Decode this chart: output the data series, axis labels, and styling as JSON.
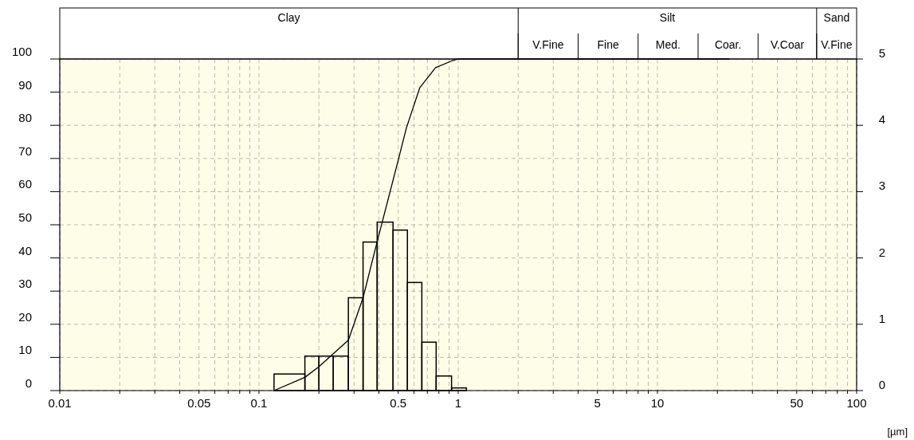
{
  "chart_data": {
    "type": "histogram",
    "xlabel": "[µm]",
    "log": "x",
    "grid": true,
    "xlim": [
      0.01,
      100
    ],
    "xticks": [
      0.01,
      {
        "value": 0.02,
        "label": null
      },
      {
        "value": 0.03,
        "label": null
      },
      {
        "value": 0.04,
        "label": null
      },
      0.05,
      {
        "value": 0.06,
        "label": null
      },
      {
        "value": 0.07,
        "label": null
      },
      {
        "value": 0.08,
        "label": null
      },
      {
        "value": 0.09,
        "label": null
      },
      0.1,
      {
        "value": 0.2,
        "label": null
      },
      {
        "value": 0.3,
        "label": null
      },
      {
        "value": 0.4,
        "label": null
      },
      0.5,
      {
        "value": 0.6,
        "label": null
      },
      {
        "value": 0.7,
        "label": null
      },
      {
        "value": 0.8,
        "label": null
      },
      {
        "value": 0.9,
        "label": null
      },
      1,
      {
        "value": 2,
        "label": null
      },
      {
        "value": 3,
        "label": null
      },
      {
        "value": 4,
        "label": null
      },
      5,
      {
        "value": 6,
        "label": null
      },
      {
        "value": 7,
        "label": null
      },
      {
        "value": 8,
        "label": null
      },
      {
        "value": 9,
        "label": null
      },
      10,
      {
        "value": 20,
        "label": null
      },
      {
        "value": 30,
        "label": null
      },
      {
        "value": 40,
        "label": null
      },
      50,
      {
        "value": 60,
        "label": null
      },
      {
        "value": 70,
        "label": null
      },
      {
        "value": 80,
        "label": null
      },
      {
        "value": 90,
        "label": null
      },
      100
    ],
    "ylim": [
      0,
      100
    ],
    "yticks": [
      0,
      10,
      20,
      30,
      40,
      50,
      60,
      70,
      80,
      90,
      100
    ],
    "y2lim": [
      0,
      5
    ],
    "y2ticks": [
      0,
      1,
      2,
      3,
      4,
      5
    ],
    "annotations": [
      "Clay",
      "Silt",
      "Sand",
      "V.Fine",
      "Fine",
      "Med.",
      "Coar.",
      "V.Coar",
      "V.Fine"
    ],
    "series": [
      {
        "type": "histogram",
        "axis": "y2",
        "color": "#000000",
        "bins": [
          0.119,
          0.17,
          0.2,
          0.236,
          0.281,
          0.333,
          0.392,
          0.471,
          0.556,
          0.657,
          0.775,
          0.926,
          1.1
        ],
        "values": [
          0.25,
          0.52,
          0.52,
          0.52,
          1.4,
          2.24,
          2.54,
          2.42,
          1.63,
          0.73,
          0.22,
          0.04
        ]
      },
      {
        "type": "line",
        "color": "#000000",
        "x": [
          0.119,
          0.17,
          0.2,
          0.281,
          0.333,
          0.392,
          0.501,
          0.55,
          0.641,
          0.77,
          0.926,
          1.0,
          23
        ],
        "values": [
          0,
          4,
          7.2,
          15.2,
          28,
          44.9,
          69.7,
          79.3,
          91.3,
          97.4,
          99.4,
          100,
          100
        ]
      }
    ]
  }
}
